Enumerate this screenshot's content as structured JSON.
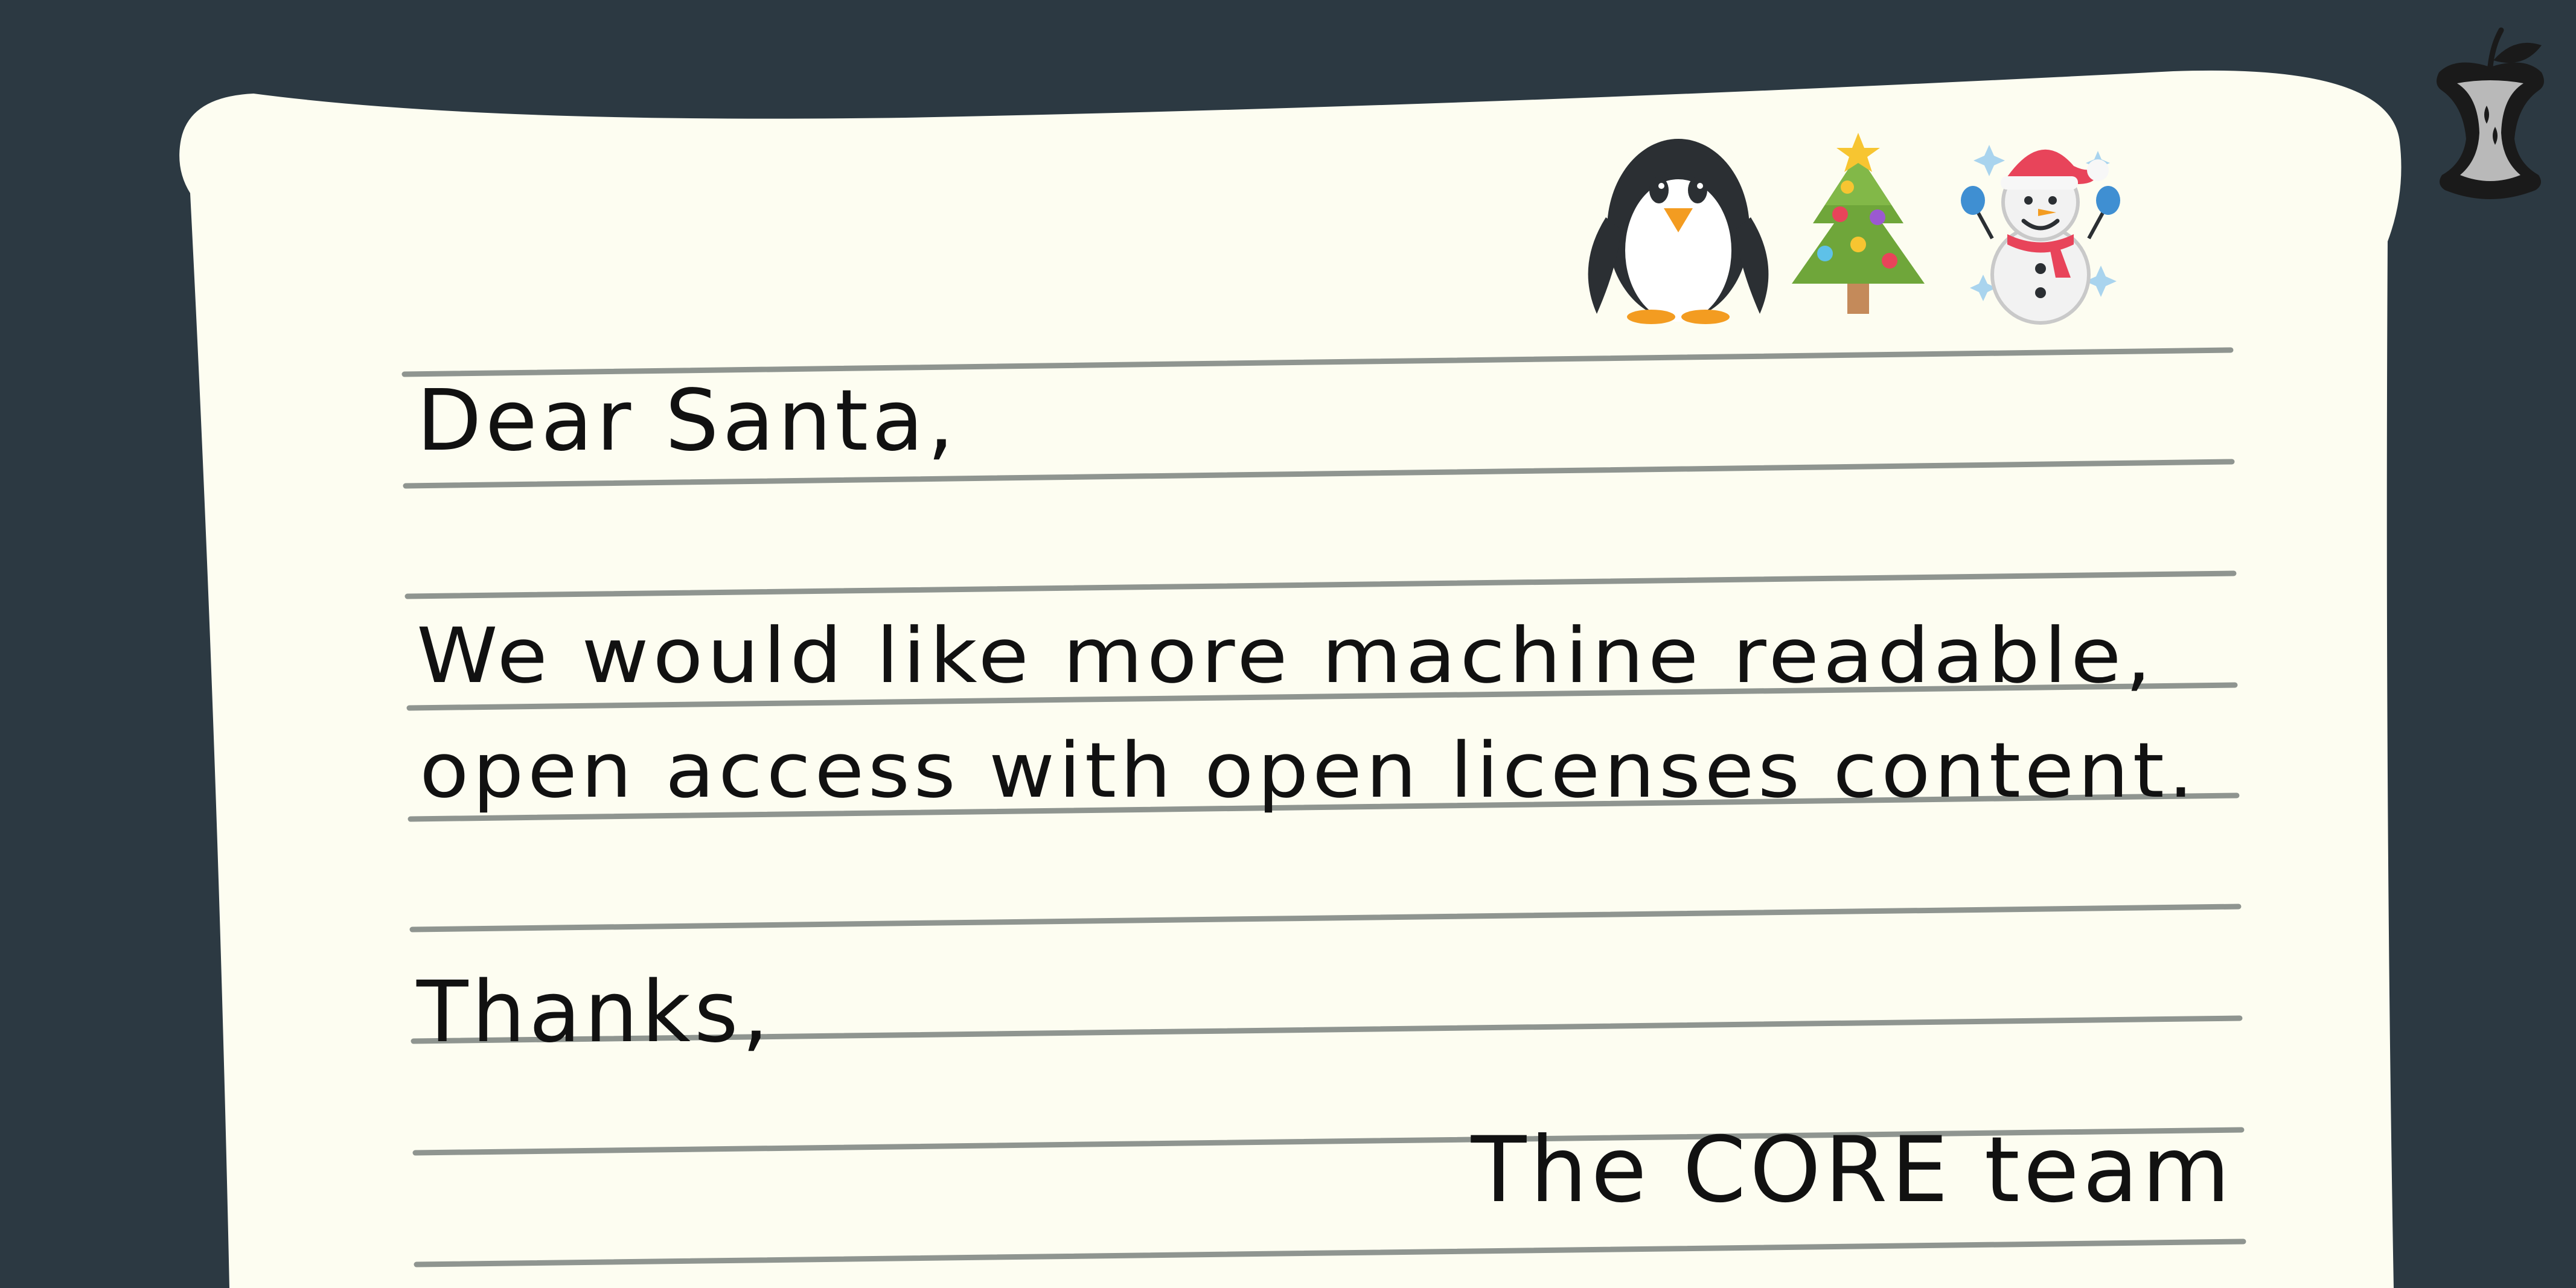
{
  "colors": {
    "background": "#2c3942",
    "paper": "#fdfdf1",
    "rule": "#8f9590",
    "ink": "#111111",
    "logo": "#b9b9b9"
  },
  "decorations": {
    "logo_icon": "apple-core-icon",
    "penguin_icon": "penguin-icon",
    "tree_icon": "christmas-tree-icon",
    "snowman_icon": "snowman-icon"
  },
  "letter": {
    "greeting": "Dear Santa,",
    "body_line_1": "We would like more machine readable,",
    "body_line_2": "open access with open licenses content.",
    "closing": "Thanks,",
    "signature": "The CORE team"
  }
}
